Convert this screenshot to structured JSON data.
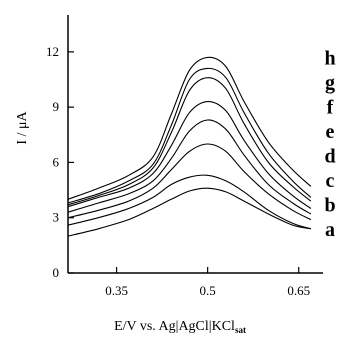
{
  "chart_data": {
    "type": "line",
    "xlabel": "E/V vs. Ag|AgCl|KCl",
    "xlabel_sub": "sat",
    "ylabel": "I / μA",
    "xlim": [
      0.27,
      0.69
    ],
    "ylim": [
      0,
      14
    ],
    "xticks": [
      0.35,
      0.5,
      0.65
    ],
    "xtick_labels": [
      "0.35",
      "0.5",
      "0.65"
    ],
    "yticks": [
      0,
      3,
      6,
      9,
      12
    ],
    "ytick_labels": [
      "0",
      "3",
      "6",
      "9",
      "12"
    ],
    "grid": false,
    "series": [
      {
        "name": "a",
        "x": [
          0.27,
          0.32,
          0.37,
          0.41,
          0.44,
          0.47,
          0.5,
          0.53,
          0.56,
          0.6,
          0.64,
          0.67
        ],
        "values": [
          2.0,
          2.4,
          2.9,
          3.5,
          4.0,
          4.45,
          4.6,
          4.4,
          3.9,
          3.2,
          2.6,
          2.4
        ]
      },
      {
        "name": "b",
        "x": [
          0.27,
          0.32,
          0.37,
          0.41,
          0.44,
          0.47,
          0.5,
          0.53,
          0.56,
          0.6,
          0.64,
          0.67
        ],
        "values": [
          2.6,
          3.0,
          3.5,
          4.1,
          4.8,
          5.2,
          5.3,
          5.0,
          4.4,
          3.4,
          2.7,
          2.4
        ]
      },
      {
        "name": "c",
        "x": [
          0.27,
          0.32,
          0.37,
          0.41,
          0.44,
          0.47,
          0.5,
          0.53,
          0.56,
          0.6,
          0.64,
          0.67
        ],
        "values": [
          3.0,
          3.4,
          3.9,
          4.6,
          5.6,
          6.6,
          7.0,
          6.6,
          5.5,
          4.3,
          3.4,
          2.9
        ]
      },
      {
        "name": "d",
        "x": [
          0.27,
          0.32,
          0.37,
          0.41,
          0.44,
          0.47,
          0.5,
          0.53,
          0.56,
          0.6,
          0.64,
          0.67
        ],
        "values": [
          3.3,
          3.8,
          4.3,
          5.0,
          6.2,
          7.7,
          8.3,
          7.8,
          6.4,
          4.8,
          3.8,
          3.2
        ]
      },
      {
        "name": "e",
        "x": [
          0.27,
          0.32,
          0.37,
          0.41,
          0.44,
          0.47,
          0.5,
          0.53,
          0.56,
          0.6,
          0.64,
          0.67
        ],
        "values": [
          3.6,
          4.1,
          4.6,
          5.4,
          6.9,
          8.7,
          9.3,
          8.8,
          7.2,
          5.4,
          4.2,
          3.5
        ]
      },
      {
        "name": "f",
        "x": [
          0.27,
          0.32,
          0.37,
          0.41,
          0.44,
          0.47,
          0.5,
          0.53,
          0.56,
          0.6,
          0.64,
          0.67
        ],
        "values": [
          3.7,
          4.2,
          4.8,
          5.7,
          7.6,
          9.9,
          10.6,
          10.0,
          8.1,
          6.0,
          4.7,
          3.9
        ]
      },
      {
        "name": "g",
        "x": [
          0.27,
          0.32,
          0.37,
          0.41,
          0.44,
          0.47,
          0.5,
          0.53,
          0.56,
          0.6,
          0.64,
          0.67
        ],
        "values": [
          3.8,
          4.3,
          5.0,
          5.9,
          8.0,
          10.5,
          11.1,
          10.6,
          8.7,
          6.5,
          5.0,
          4.1
        ]
      },
      {
        "name": "h",
        "x": [
          0.27,
          0.32,
          0.37,
          0.41,
          0.44,
          0.47,
          0.5,
          0.53,
          0.56,
          0.6,
          0.64,
          0.67
        ],
        "values": [
          4.0,
          4.6,
          5.3,
          6.3,
          8.6,
          11.0,
          11.7,
          11.2,
          9.3,
          7.1,
          5.6,
          4.7
        ]
      }
    ]
  }
}
